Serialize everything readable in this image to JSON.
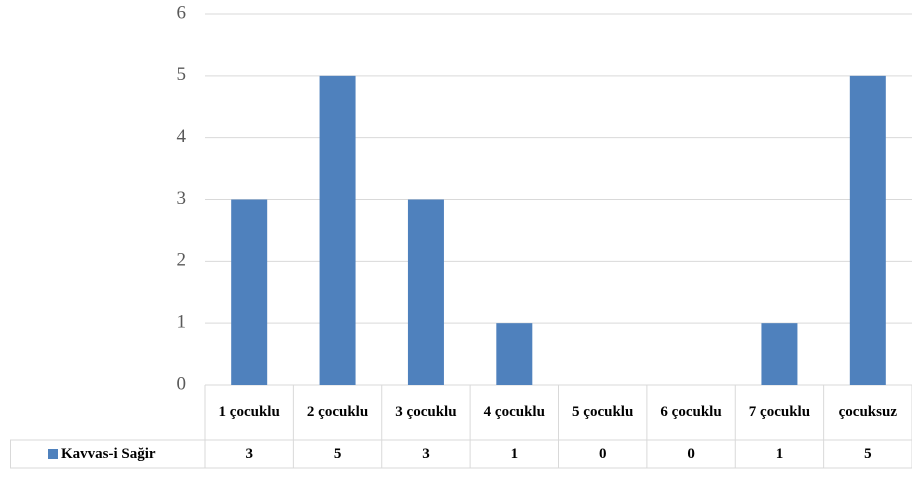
{
  "chart_data": {
    "type": "bar",
    "categories": [
      "1 çocuklu",
      "2 çocuklu",
      "3 çocuklu",
      "4 çocuklu",
      "5 çocuklu",
      "6 çocuklu",
      "7 çocuklu",
      "çocuksuz"
    ],
    "series": [
      {
        "name": "Kavvas-i Sağir",
        "color": "#4f81bd",
        "values": [
          3,
          5,
          3,
          1,
          0,
          0,
          1,
          5
        ]
      }
    ],
    "ylim": [
      0,
      6
    ],
    "yticks": [
      0,
      1,
      2,
      3,
      4,
      5,
      6
    ],
    "grid": true
  }
}
